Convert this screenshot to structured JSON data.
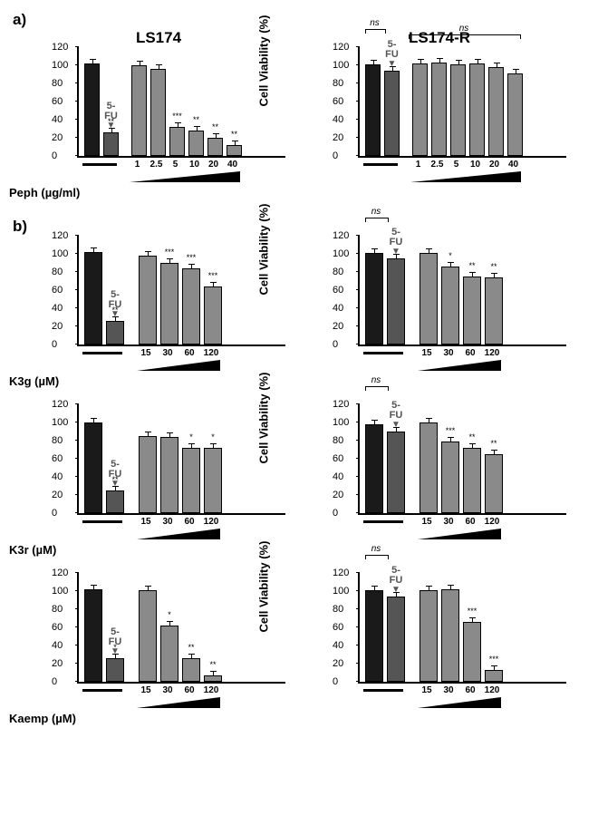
{
  "columns": [
    "LS174",
    "LS174-R"
  ],
  "panels": [
    "a)",
    "b)"
  ],
  "ylabel": "Cell Viability (%)",
  "ylim": [
    0,
    120
  ],
  "yticks": [
    0,
    20,
    40,
    60,
    80,
    100,
    120
  ],
  "colors": {
    "control": "#1a1a1a",
    "fu": "#555555",
    "treat": "#8a8a8a",
    "border": "#000000",
    "bg": "#ffffff"
  },
  "fu_label": "5-FU",
  "ns_label": "ns",
  "font": {
    "label_pt": 13,
    "tick_pt": 11,
    "sig_pt": 9,
    "header_pt": 17
  },
  "rows": [
    {
      "compound": "Peph (µg/ml)",
      "doses": [
        "1",
        "2.5",
        "5",
        "10",
        "20",
        "40"
      ],
      "panel": "a",
      "ls174": {
        "control": 102,
        "fu": 26,
        "fu_sig": "**",
        "bars": [
          100,
          96,
          32,
          28,
          20,
          12
        ],
        "sigs": [
          "",
          "",
          "***",
          "**",
          "**",
          "**"
        ],
        "ns_first": false,
        "ns_range": false
      },
      "ls174r": {
        "control": 101,
        "fu": 94,
        "fu_sig": "",
        "bars": [
          102,
          103,
          101,
          102,
          98,
          91
        ],
        "sigs": [
          "",
          "",
          "",
          "",
          "",
          ""
        ],
        "ns_first": true,
        "ns_range": true
      }
    },
    {
      "compound": "K3g (µM)",
      "doses": [
        "15",
        "30",
        "60",
        "120"
      ],
      "panel": "b",
      "ls174": {
        "control": 102,
        "fu": 26,
        "fu_sig": "**",
        "bars": [
          98,
          90,
          84,
          64
        ],
        "sigs": [
          "",
          "***",
          "***",
          "***"
        ],
        "ns_first": false,
        "ns_range": false
      },
      "ls174r": {
        "control": 101,
        "fu": 95,
        "fu_sig": "",
        "bars": [
          101,
          86,
          75,
          74
        ],
        "sigs": [
          "",
          "*",
          "**",
          "**"
        ],
        "ns_first": true,
        "ns_range": false
      }
    },
    {
      "compound": "K3r (µM)",
      "doses": [
        "15",
        "30",
        "60",
        "120"
      ],
      "panel": "b",
      "ls174": {
        "control": 100,
        "fu": 25,
        "fu_sig": "**",
        "bars": [
          85,
          84,
          72,
          72
        ],
        "sigs": [
          "",
          "",
          "*",
          "*"
        ],
        "ns_first": false,
        "ns_range": false
      },
      "ls174r": {
        "control": 98,
        "fu": 90,
        "fu_sig": "",
        "bars": [
          100,
          79,
          72,
          65
        ],
        "sigs": [
          "",
          "***",
          "**",
          "**"
        ],
        "ns_first": true,
        "ns_range": false
      }
    },
    {
      "compound": "Kaemp (µM)",
      "doses": [
        "15",
        "30",
        "60",
        "120"
      ],
      "panel": "b",
      "ls174": {
        "control": 102,
        "fu": 26,
        "fu_sig": "*",
        "bars": [
          101,
          62,
          26,
          7
        ],
        "sigs": [
          "",
          "*",
          "**",
          "**"
        ],
        "ns_first": false,
        "ns_range": false
      },
      "ls174r": {
        "control": 101,
        "fu": 94,
        "fu_sig": "",
        "bars": [
          101,
          102,
          66,
          13
        ],
        "sigs": [
          "",
          "",
          "***",
          "***"
        ],
        "ns_first": true,
        "ns_range": false
      }
    }
  ]
}
